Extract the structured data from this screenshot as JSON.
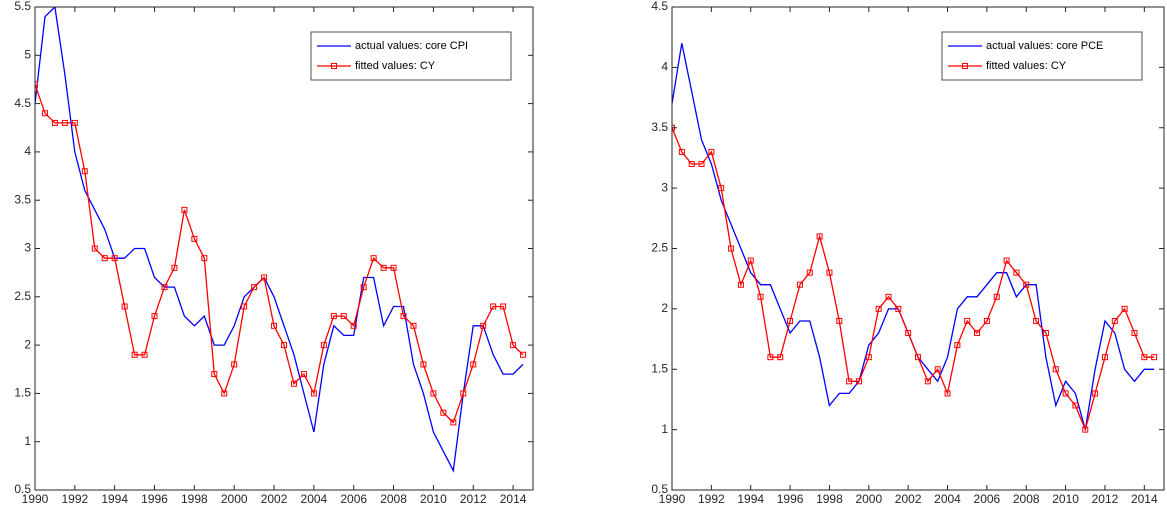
{
  "chart_data": [
    {
      "type": "line",
      "x": [
        1990,
        1990.5,
        1991,
        1991.5,
        1992,
        1992.5,
        1993,
        1993.5,
        1994,
        1994.5,
        1995,
        1995.5,
        1996,
        1996.5,
        1997,
        1997.5,
        1998,
        1998.5,
        1999,
        1999.5,
        2000,
        2000.5,
        2001,
        2001.5,
        2002,
        2002.5,
        2003,
        2003.5,
        2004,
        2004.5,
        2005,
        2005.5,
        2006,
        2006.5,
        2007,
        2007.5,
        2008,
        2008.5,
        2009,
        2009.5,
        2010,
        2010.5,
        2011,
        2011.5,
        2012,
        2012.5,
        2013,
        2013.5,
        2014,
        2014.5
      ],
      "series": [
        {
          "name": "actual values: core CPI",
          "color": "#0000ff",
          "marker": "none",
          "values": [
            4.5,
            5.4,
            5.5,
            4.8,
            4.0,
            3.6,
            3.4,
            3.2,
            2.9,
            2.9,
            3.0,
            3.0,
            2.7,
            2.6,
            2.6,
            2.3,
            2.2,
            2.3,
            2.0,
            2.0,
            2.2,
            2.5,
            2.6,
            2.7,
            2.5,
            2.2,
            1.9,
            1.5,
            1.1,
            1.8,
            2.2,
            2.1,
            2.1,
            2.7,
            2.7,
            2.2,
            2.4,
            2.4,
            1.8,
            1.5,
            1.1,
            0.9,
            0.7,
            1.5,
            2.2,
            2.2,
            1.9,
            1.7,
            1.7,
            1.8
          ]
        },
        {
          "name": "fitted values: CY",
          "color": "#ff0000",
          "marker": "square",
          "values": [
            4.7,
            4.4,
            4.3,
            4.3,
            4.3,
            3.8,
            3.0,
            2.9,
            2.9,
            2.4,
            1.9,
            1.9,
            2.3,
            2.6,
            2.8,
            3.4,
            3.1,
            2.9,
            1.7,
            1.5,
            1.8,
            2.4,
            2.6,
            2.7,
            2.2,
            2.0,
            1.6,
            1.7,
            1.5,
            2.0,
            2.3,
            2.3,
            2.2,
            2.6,
            2.9,
            2.8,
            2.8,
            2.3,
            2.2,
            1.8,
            1.5,
            1.3,
            1.2,
            1.5,
            1.8,
            2.2,
            2.4,
            2.4,
            2.0,
            1.9
          ]
        }
      ],
      "xlim": [
        1990,
        2015
      ],
      "xticks": [
        1990,
        1992,
        1994,
        1996,
        1998,
        2000,
        2002,
        2004,
        2006,
        2008,
        2010,
        2012,
        2014
      ],
      "ylim": [
        0.5,
        5.5
      ],
      "yticks": [
        0.5,
        1,
        1.5,
        2,
        2.5,
        3,
        3.5,
        4,
        4.5,
        5,
        5.5
      ],
      "legend": "top-right"
    },
    {
      "type": "line",
      "x": [
        1990,
        1990.5,
        1991,
        1991.5,
        1992,
        1992.5,
        1993,
        1993.5,
        1994,
        1994.5,
        1995,
        1995.5,
        1996,
        1996.5,
        1997,
        1997.5,
        1998,
        1998.5,
        1999,
        1999.5,
        2000,
        2000.5,
        2001,
        2001.5,
        2002,
        2002.5,
        2003,
        2003.5,
        2004,
        2004.5,
        2005,
        2005.5,
        2006,
        2006.5,
        2007,
        2007.5,
        2008,
        2008.5,
        2009,
        2009.5,
        2010,
        2010.5,
        2011,
        2011.5,
        2012,
        2012.5,
        2013,
        2013.5,
        2014,
        2014.5
      ],
      "series": [
        {
          "name": "actual values: core PCE",
          "color": "#0000ff",
          "marker": "none",
          "values": [
            3.7,
            4.2,
            3.8,
            3.4,
            3.2,
            2.9,
            2.7,
            2.5,
            2.3,
            2.2,
            2.2,
            2.0,
            1.8,
            1.9,
            1.9,
            1.6,
            1.2,
            1.3,
            1.3,
            1.4,
            1.7,
            1.8,
            2.0,
            2.0,
            1.8,
            1.6,
            1.5,
            1.4,
            1.6,
            2.0,
            2.1,
            2.1,
            2.2,
            2.3,
            2.3,
            2.1,
            2.2,
            2.2,
            1.6,
            1.2,
            1.4,
            1.3,
            1.0,
            1.5,
            1.9,
            1.8,
            1.5,
            1.4,
            1.5,
            1.5
          ]
        },
        {
          "name": "fitted values: CY",
          "color": "#ff0000",
          "marker": "square",
          "values": [
            3.5,
            3.3,
            3.2,
            3.2,
            3.3,
            3.0,
            2.5,
            2.2,
            2.4,
            2.1,
            1.6,
            1.6,
            1.9,
            2.2,
            2.3,
            2.6,
            2.3,
            1.9,
            1.4,
            1.4,
            1.6,
            2.0,
            2.1,
            2.0,
            1.8,
            1.6,
            1.4,
            1.5,
            1.3,
            1.7,
            1.9,
            1.8,
            1.9,
            2.1,
            2.4,
            2.3,
            2.2,
            1.9,
            1.8,
            1.5,
            1.3,
            1.2,
            1.0,
            1.3,
            1.6,
            1.9,
            2.0,
            1.8,
            1.6,
            1.6
          ]
        }
      ],
      "xlim": [
        1990,
        2015
      ],
      "xticks": [
        1990,
        1992,
        1994,
        1996,
        1998,
        2000,
        2002,
        2004,
        2006,
        2008,
        2010,
        2012,
        2014
      ],
      "ylim": [
        0.5,
        4.5
      ],
      "yticks": [
        0.5,
        1,
        1.5,
        2,
        2.5,
        3,
        3.5,
        4,
        4.5
      ],
      "legend": "top-right"
    }
  ]
}
